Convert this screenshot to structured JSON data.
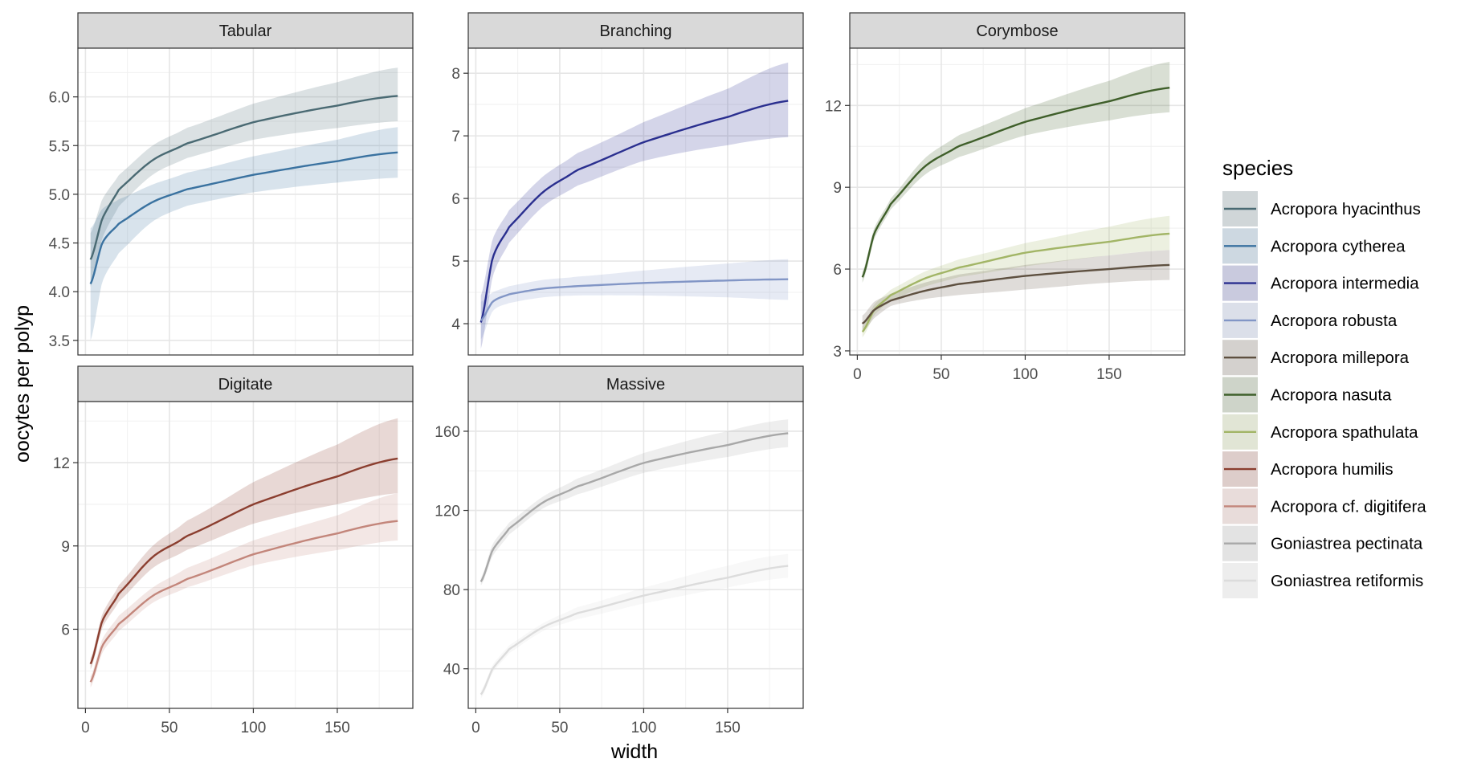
{
  "chart_data": {
    "type": "line",
    "description_of_type": "faceted line chart with confidence ribbons",
    "xlabel": "width",
    "ylabel": "oocytes per polyp",
    "legend_title": "species",
    "legend_position": "right",
    "x_range": [
      3,
      186
    ],
    "x_ticks": [
      0,
      50,
      100,
      150
    ],
    "species": [
      {
        "name": "Acropora hyacinthus",
        "color": "#4a6a73"
      },
      {
        "name": "Acropora cytherea",
        "color": "#3a72a0"
      },
      {
        "name": "Acropora intermedia",
        "color": "#2a2f8f"
      },
      {
        "name": "Acropora robusta",
        "color": "#8296c6"
      },
      {
        "name": "Acropora millepora",
        "color": "#5e5040"
      },
      {
        "name": "Acropora nasuta",
        "color": "#3f5f2a"
      },
      {
        "name": "Acropora spathulata",
        "color": "#a2b566"
      },
      {
        "name": "Acropora humilis",
        "color": "#8b3e2f"
      },
      {
        "name": "Acropora cf. digitifera",
        "color": "#c3867b"
      },
      {
        "name": "Goniastrea pectinata",
        "color": "#a8a8a8"
      },
      {
        "name": "Goniastrea retiformis",
        "color": "#dcdcdc"
      }
    ],
    "panels": [
      {
        "title": "Tabular",
        "ylim": [
          3.35,
          6.5
        ],
        "y_ticks": [
          3.5,
          4.0,
          4.5,
          5.0,
          5.5,
          6.0
        ],
        "y_tick_labels": [
          "3.5",
          "4.0",
          "4.5",
          "5.0",
          "5.5",
          "6.0"
        ],
        "show_x_axis": false,
        "series": [
          {
            "species": "Acropora hyacinthus",
            "x": [
              3,
              10,
              20,
              40,
              60,
              100,
              150,
              186
            ],
            "y": [
              4.33,
              4.75,
              5.05,
              5.35,
              5.52,
              5.74,
              5.91,
              6.01
            ],
            "lower": [
              4.05,
              4.55,
              4.88,
              5.2,
              5.37,
              5.56,
              5.68,
              5.75
            ],
            "upper": [
              4.6,
              4.95,
              5.2,
              5.5,
              5.68,
              5.93,
              6.15,
              6.3
            ]
          },
          {
            "species": "Acropora cytherea",
            "x": [
              3,
              10,
              20,
              40,
              60,
              100,
              150,
              186
            ],
            "y": [
              4.08,
              4.5,
              4.7,
              4.92,
              5.05,
              5.2,
              5.34,
              5.43
            ],
            "lower": [
              3.5,
              4.1,
              4.4,
              4.72,
              4.88,
              5.02,
              5.12,
              5.17
            ],
            "upper": [
              4.65,
              4.85,
              4.95,
              5.1,
              5.22,
              5.39,
              5.56,
              5.69
            ]
          }
        ]
      },
      {
        "title": "Branching",
        "ylim": [
          3.5,
          8.4
        ],
        "y_ticks": [
          4,
          5,
          6,
          7,
          8
        ],
        "y_tick_labels": [
          "4",
          "5",
          "6",
          "7",
          "8"
        ],
        "show_x_axis": false,
        "series": [
          {
            "species": "Acropora intermedia",
            "x": [
              3,
              10,
              20,
              40,
              60,
              100,
              150,
              186
            ],
            "y": [
              4.02,
              5.05,
              5.55,
              6.1,
              6.45,
              6.9,
              7.3,
              7.56
            ],
            "lower": [
              3.6,
              4.75,
              5.3,
              5.87,
              6.2,
              6.6,
              6.85,
              6.98
            ],
            "upper": [
              4.45,
              5.35,
              5.82,
              6.35,
              6.72,
              7.22,
              7.75,
              8.17
            ]
          },
          {
            "species": "Acropora robusta",
            "x": [
              3,
              10,
              20,
              40,
              60,
              100,
              150,
              186
            ],
            "y": [
              4.05,
              4.35,
              4.47,
              4.56,
              4.6,
              4.65,
              4.69,
              4.71
            ],
            "lower": [
              3.75,
              4.2,
              4.33,
              4.42,
              4.45,
              4.45,
              4.42,
              4.38
            ],
            "upper": [
              4.35,
              4.5,
              4.6,
              4.7,
              4.75,
              4.85,
              4.96,
              5.03
            ]
          }
        ]
      },
      {
        "title": "Corymbose",
        "ylim": [
          2.85,
          14.1
        ],
        "y_ticks": [
          3,
          6,
          9,
          12
        ],
        "y_tick_labels": [
          "3",
          "6",
          "9",
          "12"
        ],
        "show_x_axis": true,
        "series": [
          {
            "species": "Acropora nasuta",
            "x": [
              3,
              10,
              20,
              40,
              60,
              100,
              150,
              186
            ],
            "y": [
              5.7,
              7.3,
              8.4,
              9.75,
              10.5,
              11.4,
              12.15,
              12.65
            ],
            "lower": [
              5.5,
              7.1,
              8.2,
              9.45,
              10.1,
              10.9,
              11.45,
              11.75
            ],
            "upper": [
              5.9,
              7.5,
              8.6,
              10.05,
              10.9,
              11.9,
              12.9,
              13.6
            ]
          },
          {
            "species": "Acropora spathulata",
            "x": [
              3,
              10,
              20,
              40,
              60,
              100,
              150,
              186
            ],
            "y": [
              3.7,
              4.5,
              5.05,
              5.65,
              6.05,
              6.6,
              7.0,
              7.3
            ],
            "lower": [
              3.5,
              4.3,
              4.85,
              5.35,
              5.7,
              6.1,
              6.5,
              6.7
            ],
            "upper": [
              3.9,
              4.7,
              5.25,
              5.9,
              6.35,
              6.95,
              7.55,
              7.95
            ]
          },
          {
            "species": "Acropora millepora",
            "x": [
              3,
              10,
              20,
              40,
              60,
              100,
              150,
              186
            ],
            "y": [
              4.0,
              4.5,
              4.85,
              5.2,
              5.45,
              5.75,
              6.0,
              6.15
            ],
            "lower": [
              3.7,
              4.2,
              4.65,
              4.9,
              5.05,
              5.25,
              5.5,
              5.6
            ],
            "upper": [
              4.3,
              4.8,
              5.1,
              5.5,
              5.8,
              6.15,
              6.5,
              6.7
            ]
          }
        ]
      },
      {
        "title": "Digitate",
        "ylim": [
          3.15,
          14.2
        ],
        "y_ticks": [
          6,
          9,
          12
        ],
        "y_tick_labels": [
          "6",
          "9",
          "12"
        ],
        "show_x_axis": true,
        "series": [
          {
            "species": "Acropora humilis",
            "x": [
              3,
              10,
              20,
              40,
              60,
              100,
              150,
              186
            ],
            "y": [
              4.75,
              6.3,
              7.3,
              8.6,
              9.35,
              10.5,
              11.5,
              12.15
            ],
            "lower": [
              4.55,
              6.05,
              7.0,
              8.2,
              8.85,
              9.8,
              10.5,
              10.9
            ],
            "upper": [
              4.95,
              6.55,
              7.6,
              9.0,
              9.9,
              11.3,
              12.65,
              13.6
            ]
          },
          {
            "species": "Acropora cf. digitifera",
            "x": [
              3,
              10,
              20,
              40,
              60,
              100,
              150,
              186
            ],
            "y": [
              4.1,
              5.4,
              6.2,
              7.2,
              7.8,
              8.7,
              9.45,
              9.9
            ],
            "lower": [
              3.9,
              5.15,
              5.95,
              6.95,
              7.5,
              8.3,
              8.85,
              9.2
            ],
            "upper": [
              4.3,
              5.65,
              6.5,
              7.5,
              8.2,
              9.2,
              10.1,
              10.9
            ]
          }
        ]
      },
      {
        "title": "Massive",
        "ylim": [
          20,
          175
        ],
        "y_ticks": [
          40,
          80,
          120,
          160
        ],
        "y_tick_labels": [
          "40",
          "80",
          "120",
          "160"
        ],
        "show_x_axis": true,
        "series": [
          {
            "species": "Goniastrea pectinata",
            "x": [
              3,
              10,
              20,
              40,
              60,
              100,
              150,
              186
            ],
            "y": [
              84,
              100,
              111,
              124,
              132,
              144,
              153,
              159
            ],
            "lower": [
              82,
              97,
              108,
              121,
              128,
              139,
              147,
              152
            ],
            "upper": [
              86,
              103,
              114,
              127,
              136,
              149,
              160,
              166
            ]
          },
          {
            "species": "Goniastrea retiformis",
            "x": [
              3,
              10,
              20,
              40,
              60,
              100,
              150,
              186
            ],
            "y": [
              27,
              40,
              50,
              61,
              68,
              77,
              86,
              92
            ],
            "lower": [
              25,
              38,
              48,
              59,
              65,
              73,
              81,
              86
            ],
            "upper": [
              29,
              42,
              52,
              63,
              71,
              81,
              92,
              98
            ]
          }
        ]
      }
    ]
  }
}
